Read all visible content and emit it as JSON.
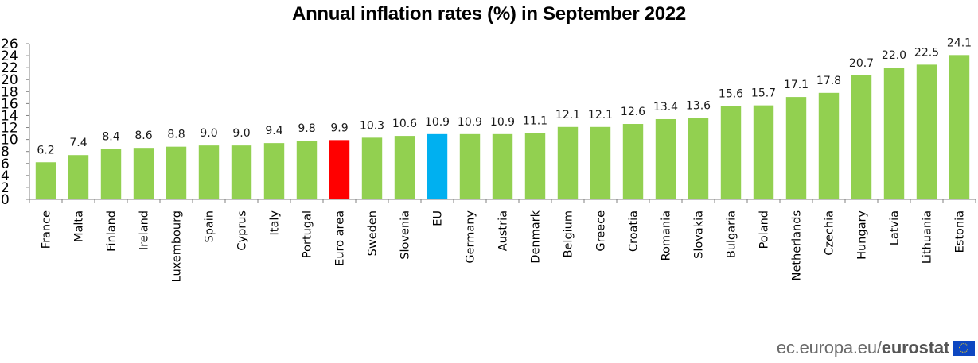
{
  "chart_data": {
    "type": "bar",
    "title": "Annual inflation rates (%) in September 2022",
    "xlabel": "",
    "ylabel": "",
    "ylim": [
      0,
      26
    ],
    "yticks": [
      0,
      2,
      4,
      6,
      8,
      10,
      12,
      14,
      16,
      18,
      20,
      22,
      24,
      26
    ],
    "grid": false,
    "legend": null,
    "categories": [
      "France",
      "Malta",
      "Finland",
      "Ireland",
      "Luxembourg",
      "Spain",
      "Cyprus",
      "Italy",
      "Portugal",
      "Euro area",
      "Sweden",
      "Slovenia",
      "EU",
      "Germany",
      "Austria",
      "Denmark",
      "Belgium",
      "Greece",
      "Croatia",
      "Romania",
      "Slovakia",
      "Bulgaria",
      "Poland",
      "Netherlands",
      "Czechia",
      "Hungary",
      "Latvia",
      "Lithuania",
      "Estonia"
    ],
    "values": [
      6.2,
      7.4,
      8.4,
      8.6,
      8.8,
      9.0,
      9.0,
      9.4,
      9.8,
      9.9,
      10.3,
      10.6,
      10.9,
      10.9,
      10.9,
      11.1,
      12.1,
      12.1,
      12.6,
      13.4,
      13.6,
      15.6,
      15.7,
      17.1,
      17.8,
      20.7,
      22.0,
      22.5,
      24.1
    ],
    "value_labels": [
      "6.2",
      "7.4",
      "8.4",
      "8.6",
      "8.8",
      "9.0",
      "9.0",
      "9.4",
      "9.8",
      "9.9",
      "10.3",
      "10.6",
      "10.9",
      "10.9",
      "10.9",
      "11.1",
      "12.1",
      "12.1",
      "12.6",
      "13.4",
      "13.6",
      "15.6",
      "15.7",
      "17.1",
      "17.8",
      "20.7",
      "22.0",
      "22.5",
      "24.1"
    ],
    "colors": {
      "default": "#92d050",
      "highlight": {
        "Euro area": "#ff0000",
        "EU": "#00b0f0"
      },
      "axis": "#808080"
    }
  },
  "footer": {
    "site": "ec.europa.eu/",
    "brand": "eurostat",
    "flag_icon": "eu-flag-icon"
  }
}
